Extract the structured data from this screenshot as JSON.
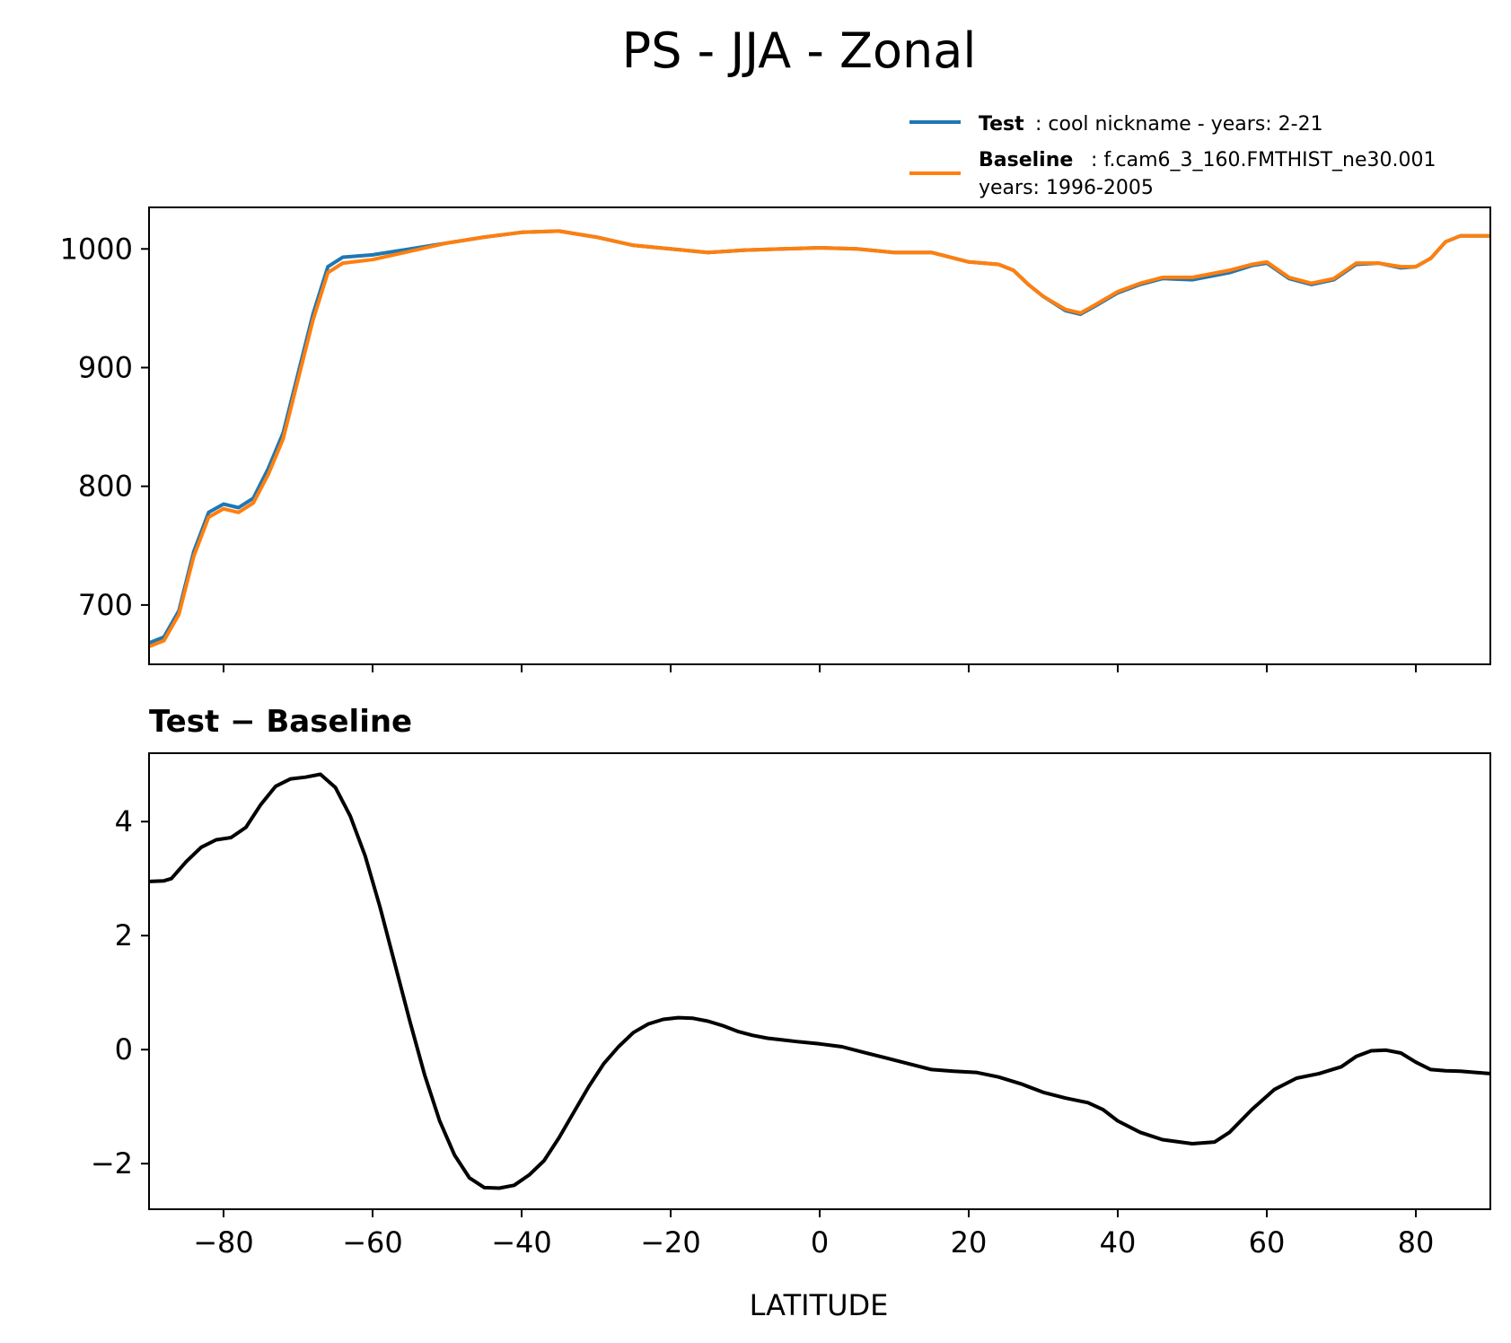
{
  "figure": {
    "title": "PS - JJA - Zonal"
  },
  "legend": {
    "test": {
      "name": "Test",
      "label": ": cool nickname - years: 2-21",
      "color": "#1f77b4"
    },
    "baseline": {
      "name": "Baseline",
      "label": ": f.cam6_3_160.FMTHIST_ne30.001",
      "label_line2": "years: 1996-2005",
      "color": "#ff7f0e"
    }
  },
  "chart_data": [
    {
      "type": "line",
      "title": "",
      "xlabel": "",
      "ylabel": "",
      "xlim": [
        -90,
        90
      ],
      "ylim": [
        650,
        1035
      ],
      "yticks": [
        700,
        800,
        900,
        1000
      ],
      "xticks": [
        -80,
        -60,
        -40,
        -20,
        0,
        20,
        40,
        60,
        80
      ],
      "series": [
        {
          "name": "Test",
          "color": "#1f77b4",
          "x": [
            -90,
            -88,
            -86,
            -84,
            -82,
            -80,
            -78,
            -76,
            -74,
            -72,
            -70,
            -68,
            -66,
            -64,
            -60,
            -55,
            -50,
            -45,
            -40,
            -35,
            -30,
            -25,
            -20,
            -15,
            -10,
            -5,
            0,
            5,
            10,
            15,
            20,
            24,
            26,
            28,
            30,
            33,
            35,
            37,
            40,
            43,
            46,
            50,
            55,
            58,
            60,
            63,
            66,
            69,
            72,
            75,
            78,
            80,
            82,
            84,
            86,
            88,
            90
          ],
          "values": [
            668,
            673,
            695,
            745,
            778,
            785,
            782,
            790,
            815,
            845,
            895,
            945,
            985,
            993,
            995,
            1000,
            1005,
            1010,
            1014,
            1015,
            1010,
            1003,
            1000,
            997,
            999,
            1000,
            1001,
            1000,
            997,
            997,
            989,
            987,
            982,
            970,
            960,
            948,
            945,
            952,
            963,
            970,
            975,
            974,
            980,
            986,
            988,
            975,
            970,
            974,
            987,
            988,
            984,
            985,
            992,
            1006,
            1011,
            1011,
            1011
          ]
        },
        {
          "name": "Baseline",
          "color": "#ff7f0e",
          "x": [
            -90,
            -88,
            -86,
            -84,
            -82,
            -80,
            -78,
            -76,
            -74,
            -72,
            -70,
            -68,
            -66,
            -64,
            -60,
            -55,
            -50,
            -45,
            -40,
            -35,
            -30,
            -25,
            -20,
            -15,
            -10,
            -5,
            0,
            5,
            10,
            15,
            20,
            24,
            26,
            28,
            30,
            33,
            35,
            37,
            40,
            43,
            46,
            50,
            55,
            58,
            60,
            63,
            66,
            69,
            72,
            75,
            78,
            80,
            82,
            84,
            86,
            88,
            90
          ],
          "values": [
            665,
            670,
            692,
            741,
            774,
            781,
            778,
            786,
            810,
            840,
            890,
            940,
            980,
            988,
            991,
            998,
            1005,
            1010,
            1014,
            1015,
            1010,
            1003,
            1000,
            997,
            999,
            1000,
            1001,
            1000,
            997,
            997,
            989,
            987,
            982,
            970,
            960,
            949,
            946,
            953,
            964,
            971,
            976,
            976,
            982,
            987,
            989,
            976,
            971,
            975,
            988,
            988,
            985,
            985,
            992,
            1006,
            1011,
            1011,
            1011
          ]
        }
      ]
    },
    {
      "type": "line",
      "title": "Test − Baseline",
      "xlabel": "LATITUDE",
      "ylabel": "",
      "xlim": [
        -90,
        90
      ],
      "ylim": [
        -2.8,
        5.2
      ],
      "yticks": [
        -2,
        0,
        2,
        4
      ],
      "xticks": [
        -80,
        -60,
        -40,
        -20,
        0,
        20,
        40,
        60,
        80
      ],
      "xticklabels": [
        "−80",
        "−60",
        "−40",
        "−20",
        "0",
        "20",
        "40",
        "60",
        "80"
      ],
      "yticklabels": [
        "−2",
        "0",
        "2",
        "4"
      ],
      "series": [
        {
          "name": "Test − Baseline",
          "color": "#000000",
          "x": [
            -90,
            -88,
            -87,
            -85,
            -83,
            -81,
            -79,
            -77,
            -75,
            -73,
            -71,
            -69,
            -67,
            -65,
            -63,
            -61,
            -59,
            -57,
            -55,
            -53,
            -51,
            -49,
            -47,
            -45,
            -43,
            -41,
            -39,
            -37,
            -35,
            -33,
            -31,
            -29,
            -27,
            -25,
            -23,
            -21,
            -19,
            -17,
            -15,
            -13,
            -11,
            -9,
            -7,
            -5,
            -3,
            0,
            3,
            6,
            9,
            12,
            15,
            18,
            21,
            24,
            27,
            30,
            33,
            36,
            38,
            40,
            43,
            46,
            50,
            53,
            55,
            58,
            61,
            64,
            67,
            70,
            72,
            74,
            76,
            78,
            80,
            82,
            84,
            86,
            88,
            90
          ],
          "values": [
            2.95,
            2.96,
            3.0,
            3.3,
            3.55,
            3.68,
            3.72,
            3.9,
            4.3,
            4.62,
            4.75,
            4.78,
            4.83,
            4.6,
            4.1,
            3.4,
            2.5,
            1.5,
            0.5,
            -0.45,
            -1.25,
            -1.85,
            -2.25,
            -2.42,
            -2.43,
            -2.38,
            -2.2,
            -1.95,
            -1.55,
            -1.1,
            -0.65,
            -0.25,
            0.05,
            0.3,
            0.45,
            0.53,
            0.56,
            0.55,
            0.5,
            0.42,
            0.32,
            0.25,
            0.2,
            0.17,
            0.14,
            0.1,
            0.05,
            -0.05,
            -0.15,
            -0.25,
            -0.35,
            -0.38,
            -0.4,
            -0.48,
            -0.6,
            -0.75,
            -0.85,
            -0.93,
            -1.05,
            -1.25,
            -1.45,
            -1.58,
            -1.65,
            -1.62,
            -1.45,
            -1.05,
            -0.7,
            -0.5,
            -0.42,
            -0.3,
            -0.12,
            -0.02,
            -0.01,
            -0.06,
            -0.22,
            -0.35,
            -0.37,
            -0.38,
            -0.4,
            -0.42
          ]
        }
      ]
    }
  ]
}
